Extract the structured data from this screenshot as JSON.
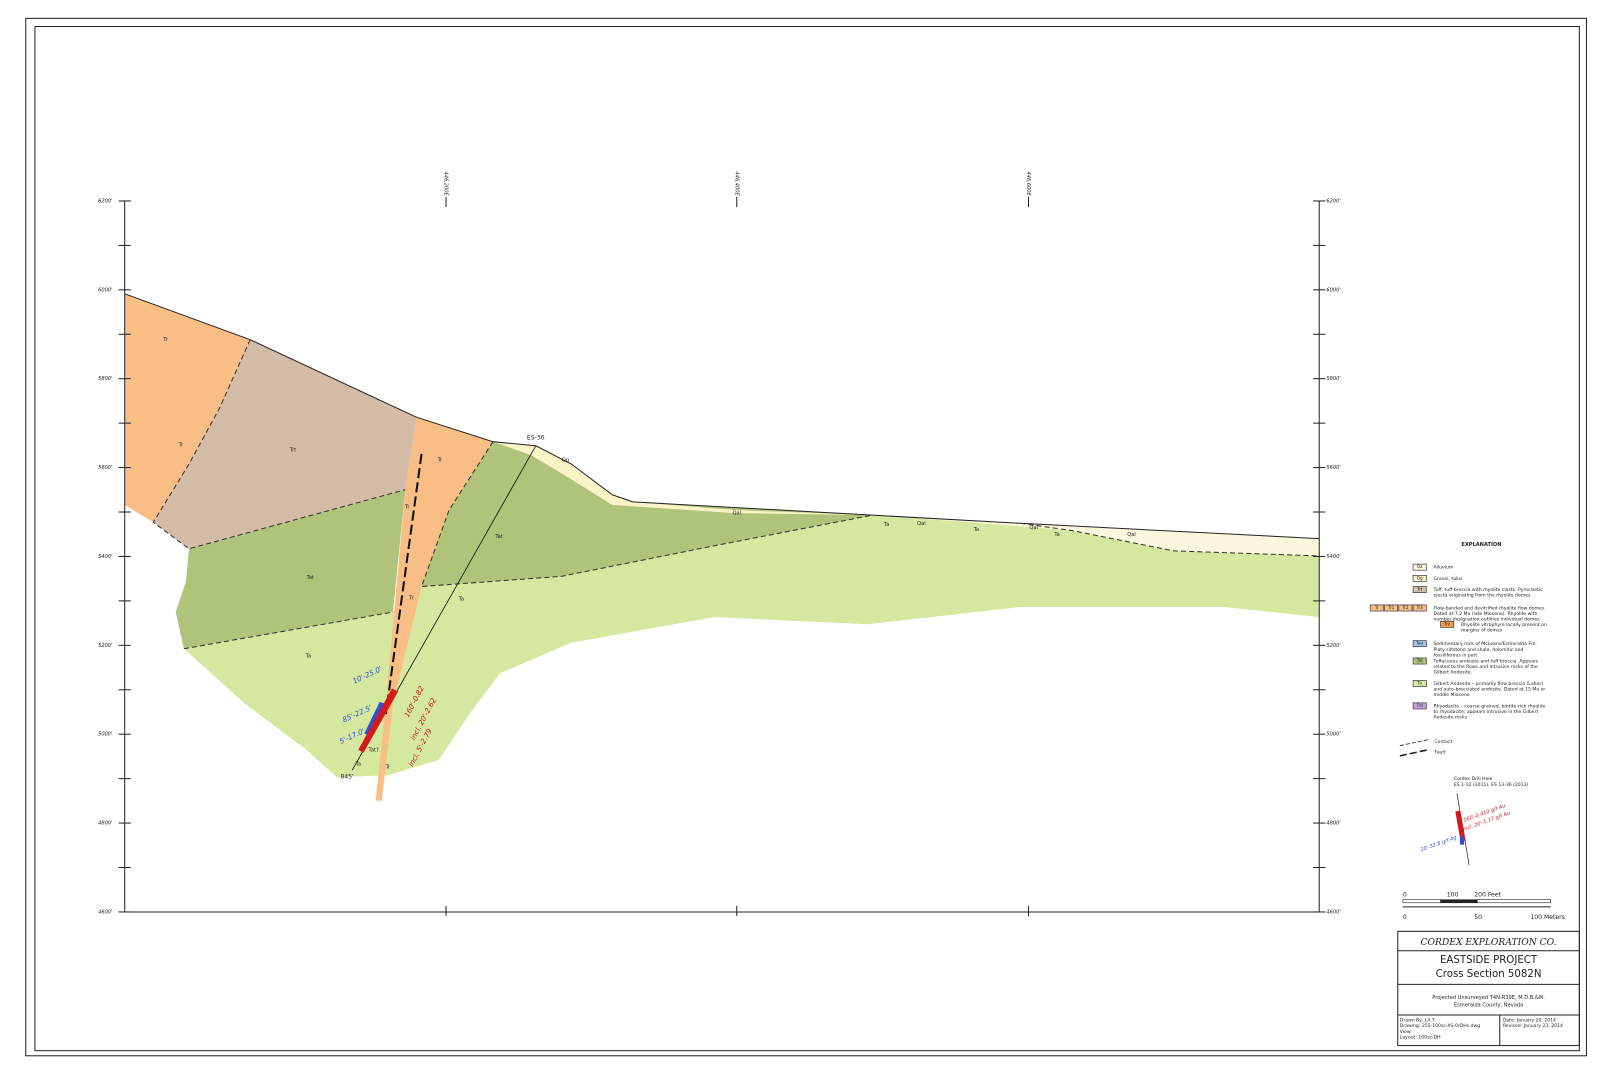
{
  "axis": {
    "elevations": [
      "6200'",
      "6000'",
      "5800'",
      "5600'",
      "5400'",
      "5200'",
      "5000'",
      "4800'",
      "4600'"
    ],
    "eastings": [
      "446,200E",
      "446,400E",
      "446,600E"
    ]
  },
  "section_labels": [
    "Tr",
    "Tr",
    "Trt",
    "Tr",
    "Qg",
    "Tr",
    "Tat",
    "Qal",
    "Ta",
    "Qal",
    "Ta",
    "Qal",
    "Ta",
    "Qal",
    "Tat",
    "Tr",
    "Ta",
    "Ta",
    "Tat?",
    "Ta",
    "Tr"
  ],
  "drill_hole": {
    "name": "ES-36",
    "depth": "845'",
    "intervals_left": [
      "10'-25.0'",
      "85'-22.5'",
      "5'-17.0'"
    ],
    "intervals_right": [
      "160'-0.82",
      "incl. 20'-2.62",
      "incl. 5'-2.79"
    ]
  },
  "legend": {
    "title": "EXPLANATION",
    "units": [
      {
        "codes": [
          "Qa"
        ],
        "lines": [
          "Alluvium"
        ]
      },
      {
        "codes": [
          "Qg"
        ],
        "lines": [
          "Gravel, talus"
        ]
      },
      {
        "codes": [
          "Trt"
        ],
        "lines": [
          "Tuff, tuff breccia with rhyolite clasts. Pyroclastic",
          "ejecta originating from the rhyolite domes"
        ]
      },
      {
        "codes": [
          "Tr",
          "Tr1",
          "Tr2",
          "Tr3"
        ],
        "lines": [
          "Flow-banded and devitrified rhyolite flow domes.",
          "Dated at 7.2 Ma (late Miocene). Rhyolite with",
          "number designation outlines individual domes"
        ]
      },
      {
        "codes": [
          "Trv"
        ],
        "lines": [
          "Rhyolite vitrophyre locally present on",
          "margins of domes"
        ]
      },
      {
        "codes": [
          "Tau"
        ],
        "lines": [
          "Sedimentary rock of McLeans/Esmeralda Fm.",
          "Platy siltstone and shale, dolomitic and",
          "fossiliferous in part"
        ]
      },
      {
        "codes": [
          "Tat"
        ],
        "lines": [
          "Tuffaceous andesite and tuff breccia. Appears",
          "related to the flows and intrusive rocks of the",
          "Gilbert Andesite."
        ]
      },
      {
        "codes": [
          "Ta"
        ],
        "lines": [
          "Gilbert Andesite – primarily flow breccia (Lahar)",
          "and auto-brecciated andesite. Dated at 15 Ma or",
          "middle Miocene."
        ]
      },
      {
        "codes": [
          "Trd"
        ],
        "lines": [
          "Rhyodacite – coarse-grained, biotite-rich rhyolite",
          "to rhyodacite; appears intrusive in the Gilbert",
          "Andesite rocks"
        ]
      }
    ],
    "contacts": [
      "Contact",
      "Fault"
    ],
    "drill_hole": {
      "lines": [
        "Cordex Drill Hole",
        "ES 1-12 (2011), ES 13-36 (2013)"
      ],
      "samples": [
        "160'-0.410 g/t Au",
        "incl. 20'-1.17 g/t Au",
        "20'-32.8 g/t Ag"
      ]
    }
  },
  "scale": {
    "feet": [
      "0",
      "100",
      "200 Feet"
    ],
    "meters": [
      "0",
      "50",
      "100 Meters"
    ]
  },
  "title_block": {
    "company": "CORDEX EXPLORATION CO.",
    "project": "EASTSIDE PROJECT",
    "section": "Cross Section 5082N",
    "location": [
      "Projected Unsurveyed T4N-R39E, M.D.B.&M.",
      "Esmeralda County, Nevada"
    ],
    "drawn": [
      "Drawn By: J.A.T.",
      "Drawing: 255-100sc-XS-0rDHs.dwg",
      "View:",
      "Layout: 100sc-DH"
    ],
    "dates": [
      "Date: January 20, 2014",
      "Revised: January 23, 2014"
    ]
  }
}
